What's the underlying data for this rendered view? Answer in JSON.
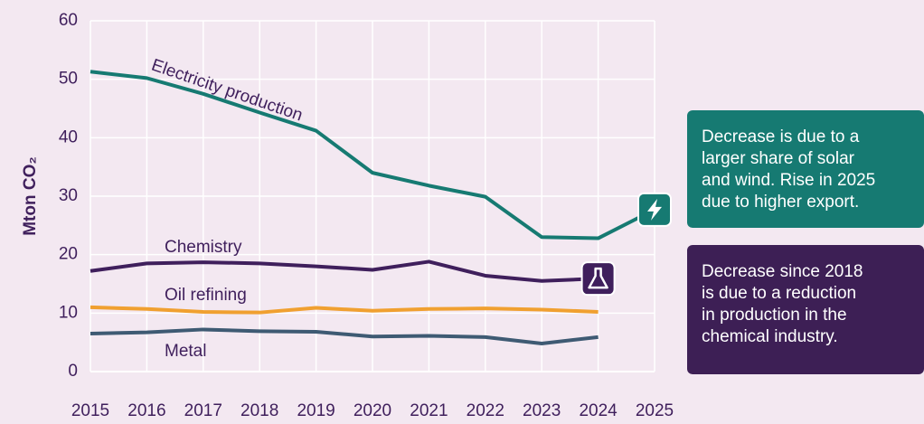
{
  "chart_data": {
    "type": "line",
    "y_label": "Mton CO₂",
    "x": [
      2015,
      2016,
      2017,
      2018,
      2019,
      2020,
      2021,
      2022,
      2023,
      2024,
      2025
    ],
    "xlim": [
      2015,
      2025
    ],
    "xticks": [
      2015,
      2016,
      2017,
      2018,
      2019,
      2020,
      2021,
      2022,
      2023,
      2024,
      2025
    ],
    "ylim": [
      0,
      60
    ],
    "yticks": [
      0,
      10,
      20,
      30,
      40,
      50,
      60
    ],
    "grid": true,
    "series": [
      {
        "name": "Electricity production",
        "color": "#167a72",
        "values": [
          51.3,
          50.2,
          47.5,
          44.3,
          41.2,
          34.0,
          31.8,
          29.9,
          23.0,
          22.8,
          27.7
        ]
      },
      {
        "name": "Chemistry",
        "color": "#3f1f5c",
        "values": [
          17.2,
          18.5,
          18.7,
          18.5,
          18.0,
          17.4,
          18.8,
          16.4,
          15.5,
          15.9,
          null
        ]
      },
      {
        "name": "Oil refining",
        "color": "#f0a030",
        "values": [
          11.0,
          10.7,
          10.2,
          10.1,
          10.9,
          10.4,
          10.7,
          10.8,
          10.6,
          10.2,
          null
        ]
      },
      {
        "name": "Metal",
        "color": "#3e5a73",
        "values": [
          6.5,
          6.7,
          7.2,
          6.9,
          6.8,
          6.0,
          6.1,
          5.9,
          4.8,
          5.9,
          null
        ]
      }
    ],
    "annotations": [
      {
        "color": "#167a72",
        "lines": [
          "Decrease is due to a",
          "larger share of solar",
          "and wind. Rise in 2025",
          "due to higher export."
        ]
      },
      {
        "color": "#3d1f55",
        "lines": [
          "Decrease since 2018",
          "is due to a reduction",
          "in production in the",
          "chemical industry."
        ]
      }
    ]
  }
}
